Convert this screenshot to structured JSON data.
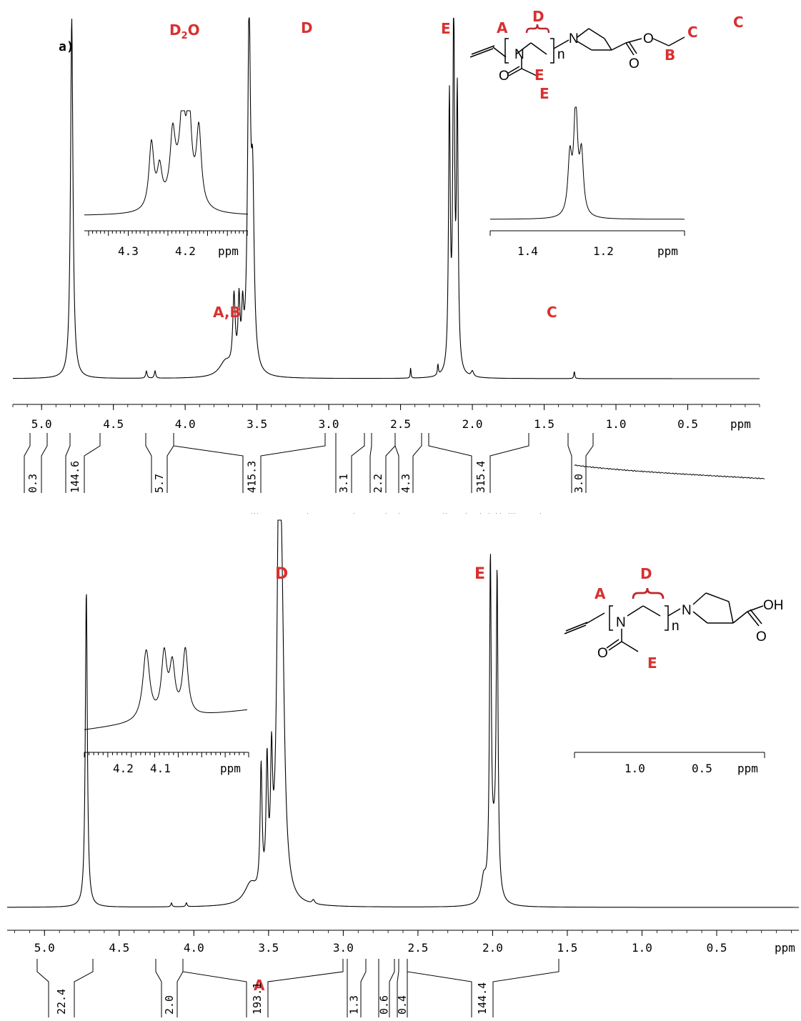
{
  "panels": [
    {
      "panel_label": "a)",
      "peak_labels": [
        "D",
        "A,B",
        "C",
        "E"
      ],
      "solvent_label": "D₂O",
      "structure": {
        "labels": [
          "A",
          "D",
          "E",
          "E",
          "B",
          "C"
        ],
        "atoms": [
          "N",
          "N",
          "O",
          "O",
          "O"
        ],
        "subscript": "n"
      },
      "unit": "ppm"
    },
    {
      "panel_label": "",
      "peak_labels": [
        "D",
        "E",
        "A"
      ],
      "structure": {
        "labels": [
          "A",
          "D",
          "E"
        ],
        "atoms": [
          "N",
          "N",
          "O",
          "OH",
          "O"
        ],
        "subscript": "n"
      },
      "unit": "ppm"
    }
  ],
  "chart_data": [
    {
      "type": "line",
      "title": "",
      "xlabel": "ppm",
      "xlim": [
        5.2,
        0.0
      ],
      "x_ticks": [
        "5.0",
        "4.5",
        "4.0",
        "3.5",
        "3.0",
        "2.5",
        "2.0",
        "1.5",
        "1.0",
        "0.5"
      ],
      "peaks_ppm": [
        {
          "ppm": 4.79,
          "label": "D₂O"
        },
        {
          "ppm": 3.66,
          "label": "A,B"
        },
        {
          "ppm": 3.55,
          "label": "D"
        },
        {
          "ppm": 2.13,
          "label": "E"
        },
        {
          "ppm": 1.29,
          "label": "C"
        }
      ],
      "integrals": [
        "0.3",
        "144.6",
        "5.7",
        "415.3",
        "3.1",
        "2.2",
        "4.3",
        "315.4",
        "3.0"
      ],
      "insets": [
        {
          "ticks": [
            "4.3",
            "4.2"
          ],
          "unit": "ppm"
        },
        {
          "ticks": [
            "1.4",
            "1.2"
          ],
          "unit": "ppm"
        }
      ]
    },
    {
      "type": "line",
      "title": "",
      "xlabel": "ppm",
      "xlim": [
        5.25,
        -0.05
      ],
      "x_ticks": [
        "5.0",
        "4.5",
        "4.0",
        "3.5",
        "3.0",
        "2.5",
        "2.0",
        "1.5",
        "1.0",
        "0.5"
      ],
      "peaks_ppm": [
        {
          "ppm": 4.72,
          "label": ""
        },
        {
          "ppm": 3.52,
          "label": "A"
        },
        {
          "ppm": 3.43,
          "label": "D"
        },
        {
          "ppm": 1.98,
          "label": "E"
        }
      ],
      "integrals": [
        "22.4",
        "2.0",
        "193.1",
        "1.3",
        "0.6",
        "0.4",
        "144.4"
      ],
      "insets": [
        {
          "ticks": [
            "4.2",
            "4.1"
          ],
          "unit": "ppm"
        },
        {
          "ticks": [
            "1.0",
            "0.5"
          ],
          "unit": "ppm"
        }
      ]
    }
  ]
}
